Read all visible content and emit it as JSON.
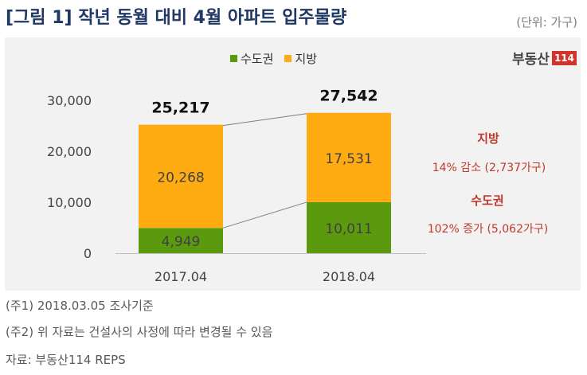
{
  "header": {
    "title": "[그림 1] 작년 동월 대비 4월 아파트 입주물량",
    "unit": "(단위: 가구)"
  },
  "brand": {
    "name": "부동산",
    "number": "114"
  },
  "chart_data": {
    "type": "bar",
    "stacked": true,
    "categories": [
      "2017.04",
      "2018.04"
    ],
    "series": [
      {
        "name": "수도권",
        "values": [
          4949,
          10011
        ],
        "color": "#5b9a0f",
        "labels": [
          "4,949",
          "10,011"
        ]
      },
      {
        "name": "지방",
        "values": [
          20268,
          17531
        ],
        "color": "#ffab12",
        "labels": [
          "20,268",
          "17,531"
        ]
      }
    ],
    "totals": [
      "25,217",
      "27,542"
    ],
    "ylim": [
      0,
      30000
    ],
    "yticks": [
      {
        "value": 0,
        "label": "0"
      },
      {
        "value": 10000,
        "label": "10,000"
      },
      {
        "value": 20000,
        "label": "20,000"
      },
      {
        "value": 30000,
        "label": "30,000"
      }
    ],
    "legend_position": "top-center",
    "grid": false
  },
  "annotations": {
    "jibang_title": "지방",
    "jibang_desc": "14% 감소 (2,737가구)",
    "sudo_title": "수도권",
    "sudo_desc": "102% 증가 (5,062가구)"
  },
  "notes": [
    "(주1) 2018.03.05 조사기준",
    "(주2) 위 자료는 건설사의 사정에 따라 변경될 수 있음",
    "자료: 부동산114 REPS"
  ]
}
